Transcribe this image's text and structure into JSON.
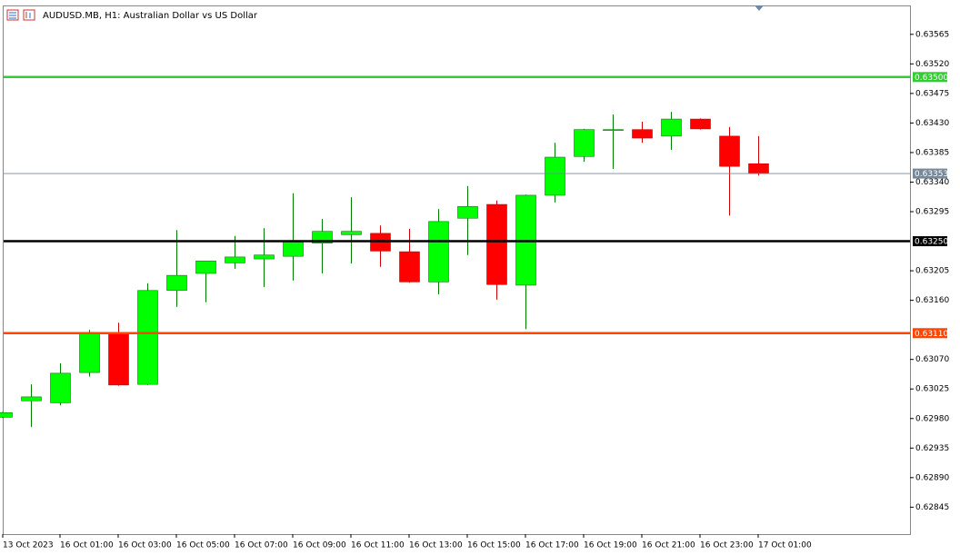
{
  "chart_data": {
    "type": "candlestick",
    "title": "AUDUSD.MB, H1:  Australian Dollar vs US Dollar",
    "categories": [
      "13 Oct 2023",
      null,
      "16 Oct 01:00",
      null,
      "16 Oct 03:00",
      null,
      "16 Oct 05:00",
      null,
      "16 Oct 07:00",
      null,
      "16 Oct 09:00",
      null,
      "16 Oct 11:00",
      null,
      "16 Oct 13:00",
      null,
      "16 Oct 15:00",
      null,
      "16 Oct 17:00",
      null,
      "16 Oct 19:00",
      null,
      "16 Oct 21:00",
      null,
      "16 Oct 23:00",
      null,
      "17 Oct 01:00"
    ],
    "open": [
      0.62982,
      0.63007,
      0.63004,
      0.6305,
      0.6311,
      0.63032,
      0.63175,
      0.63201,
      0.63217,
      0.63223,
      0.63227,
      0.63247,
      0.6326,
      0.63262,
      0.63234,
      0.63188,
      0.63285,
      0.63306,
      0.63183,
      0.6332,
      0.63379,
      0.63419,
      0.6342,
      0.6341,
      0.63436,
      0.6341,
      0.63368
    ],
    "high": [
      0.6299,
      0.63032,
      0.63064,
      0.63115,
      0.63126,
      0.63186,
      0.63267,
      0.6322,
      0.63258,
      0.6327,
      0.63323,
      0.63284,
      0.63317,
      0.63274,
      0.63269,
      0.63299,
      0.63334,
      0.63312,
      0.63321,
      0.634,
      0.63421,
      0.63443,
      0.63432,
      0.63447,
      0.63437,
      0.63424,
      0.6341
    ],
    "low": [
      0.62981,
      0.62967,
      0.63,
      0.63044,
      0.6303,
      0.63031,
      0.6315,
      0.63157,
      0.63208,
      0.6318,
      0.6319,
      0.63201,
      0.63216,
      0.63211,
      0.63187,
      0.63169,
      0.63229,
      0.63161,
      0.63116,
      0.63309,
      0.63371,
      0.6336,
      0.634,
      0.63389,
      0.6342,
      0.63289,
      0.6335
    ],
    "close": [
      0.62989,
      0.63013,
      0.63049,
      0.6311,
      0.63031,
      0.63175,
      0.63198,
      0.6322,
      0.63226,
      0.63229,
      0.63249,
      0.63265,
      0.63265,
      0.63235,
      0.63188,
      0.6328,
      0.63303,
      0.63184,
      0.6332,
      0.63378,
      0.6342,
      0.6342,
      0.63407,
      0.63436,
      0.63421,
      0.63364,
      0.63353
    ],
    "up_color": "#00ff00",
    "down_color": "#ff0000",
    "up_wick_color": "#008000",
    "down_wick_color": "#cc0000",
    "ylim": [
      0.62804,
      0.63609
    ],
    "yticks": [
      {
        "value": 0.63565,
        "label": "0.63565"
      },
      {
        "value": 0.6352,
        "label": "0.63520"
      },
      {
        "value": 0.63475,
        "label": "0.63475"
      },
      {
        "value": 0.6343,
        "label": "0.63430"
      },
      {
        "value": 0.63385,
        "label": "0.63385"
      },
      {
        "value": 0.6334,
        "label": "0.63340"
      },
      {
        "value": 0.63295,
        "label": "0.63295"
      },
      {
        "value": 0.63205,
        "label": "0.63205"
      },
      {
        "value": 0.6316,
        "label": "0.63160"
      },
      {
        "value": 0.6307,
        "label": "0.63070"
      },
      {
        "value": 0.63025,
        "label": "0.63025"
      },
      {
        "value": 0.6298,
        "label": "0.62980"
      },
      {
        "value": 0.62935,
        "label": "0.62935"
      },
      {
        "value": 0.6289,
        "label": "0.62890"
      },
      {
        "value": 0.62845,
        "label": "0.62845"
      }
    ],
    "levels": [
      {
        "value": 0.635,
        "label": "0.63500",
        "color": "#32cd32"
      },
      {
        "value": 0.63353,
        "label": "0.63353",
        "color": "#778899"
      },
      {
        "value": 0.6325,
        "label": "0.63250",
        "color": "#000000"
      },
      {
        "value": 0.6311,
        "label": "0.63110",
        "color": "#ff4500"
      }
    ]
  }
}
